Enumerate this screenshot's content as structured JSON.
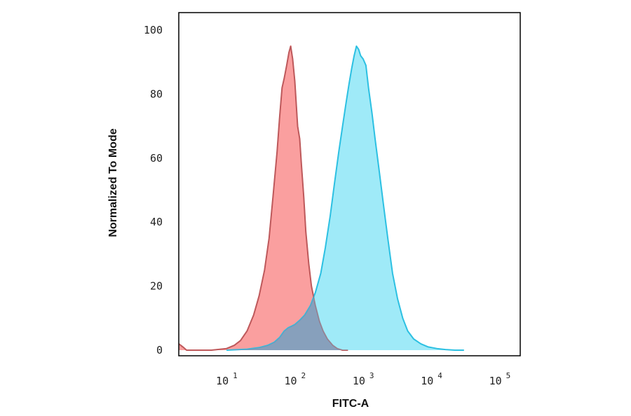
{
  "chart_data": {
    "type": "area",
    "title": "",
    "xlabel": "FITC-A",
    "ylabel": "Normalized To Mode",
    "x_scale": "log",
    "xlim": [
      2,
      200000
    ],
    "ylim": [
      0,
      105
    ],
    "y_ticks": [
      "0",
      "20",
      "40",
      "60",
      "80",
      "100"
    ],
    "y_tick_values": [
      0,
      20,
      40,
      60,
      80,
      100
    ],
    "x_ticks": [
      {
        "value": 10,
        "base": "10",
        "exp": "1"
      },
      {
        "value": 100,
        "base": "10",
        "exp": "2"
      },
      {
        "value": 1000,
        "base": "10",
        "exp": "3"
      },
      {
        "value": 10000,
        "base": "10",
        "exp": "4"
      },
      {
        "value": 100000,
        "base": "10",
        "exp": "5"
      }
    ],
    "grid": false,
    "series": [
      {
        "color_fill": "#f98e8e",
        "color_line": "#d9534f",
        "x": [
          2,
          2.3,
          2.6,
          3,
          4,
          6,
          10,
          13,
          16,
          20,
          25,
          30,
          36,
          42,
          48,
          55,
          60,
          65,
          70,
          76,
          82,
          87,
          93,
          100,
          105,
          110,
          118,
          125,
          135,
          145,
          160,
          175,
          200,
          230,
          260,
          300,
          360,
          420,
          500,
          600
        ],
        "y": [
          2,
          1,
          0,
          0,
          0,
          0,
          0.5,
          1.5,
          3,
          6,
          11,
          17,
          25,
          35,
          48,
          62,
          73,
          82,
          85,
          89,
          93,
          95,
          91,
          84,
          77,
          70,
          66,
          58,
          48,
          37,
          27,
          20,
          14,
          9,
          6,
          3.5,
          1.5,
          0.5,
          0,
          0
        ]
      },
      {
        "color_fill": "#7fe3f6",
        "color_line": "#2cc0e2",
        "x": [
          10,
          20,
          30,
          40,
          50,
          60,
          70,
          80,
          90,
          100,
          120,
          140,
          170,
          200,
          240,
          280,
          330,
          380,
          440,
          500,
          560,
          620,
          680,
          740,
          800,
          860,
          920,
          1000,
          1100,
          1200,
          1350,
          1500,
          1700,
          2000,
          2300,
          2700,
          3200,
          3800,
          4500,
          5500,
          7000,
          9000,
          12000,
          16000,
          22000,
          30000
        ],
        "y": [
          0,
          0.3,
          0.8,
          1.5,
          2.5,
          4,
          6,
          7,
          7.5,
          8,
          9.5,
          11,
          14,
          18,
          24,
          32,
          42,
          52,
          62,
          70,
          77,
          83,
          88,
          92,
          95,
          94,
          92,
          91,
          89,
          82,
          74,
          66,
          57,
          45,
          35,
          24,
          16,
          10,
          6,
          3.5,
          2,
          1,
          0.5,
          0.2,
          0,
          0
        ]
      }
    ]
  }
}
